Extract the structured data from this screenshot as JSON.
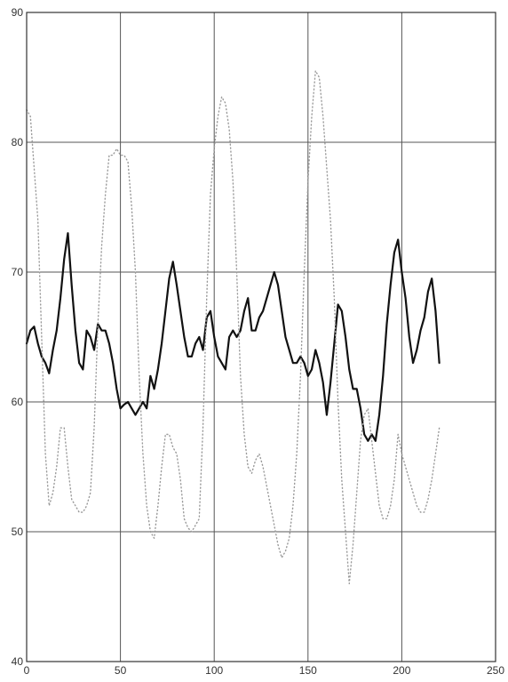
{
  "chart_data": {
    "type": "line",
    "title": "",
    "xlabel": "",
    "ylabel": "",
    "xlim": [
      0,
      250
    ],
    "ylim": [
      40,
      90
    ],
    "grid": true,
    "xticks": [
      0,
      50,
      100,
      150,
      200,
      250
    ],
    "yticks": [
      40,
      50,
      60,
      70,
      80,
      90
    ],
    "series": [
      {
        "style": "solid",
        "color": "#111111",
        "x": [
          0,
          2,
          4,
          6,
          8,
          10,
          12,
          14,
          16,
          18,
          20,
          22,
          24,
          26,
          28,
          30,
          32,
          34,
          36,
          38,
          40,
          42,
          44,
          46,
          48,
          50,
          52,
          54,
          56,
          58,
          60,
          62,
          64,
          66,
          68,
          70,
          72,
          74,
          76,
          78,
          80,
          82,
          84,
          86,
          88,
          90,
          92,
          94,
          96,
          98,
          100,
          102,
          104,
          106,
          108,
          110,
          112,
          114,
          116,
          118,
          120,
          122,
          124,
          126,
          128,
          130,
          132,
          134,
          136,
          138,
          140,
          142,
          144,
          146,
          148,
          150,
          152,
          154,
          156,
          158,
          160,
          162,
          164,
          166,
          168,
          170,
          172,
          174,
          176,
          178,
          180,
          182,
          184,
          186,
          188,
          190,
          192,
          194,
          196,
          198,
          200,
          202,
          204,
          206,
          208,
          210,
          212,
          214,
          216,
          218,
          220
        ],
        "values": [
          64.5,
          65.5,
          65.8,
          64.5,
          63.5,
          63.0,
          62.2,
          64.0,
          65.5,
          68.0,
          71.0,
          73.0,
          69.0,
          65.5,
          63.0,
          62.5,
          65.5,
          65.0,
          64.0,
          66.0,
          65.5,
          65.5,
          64.5,
          63.0,
          61.0,
          59.5,
          59.8,
          60.0,
          59.5,
          59.0,
          59.5,
          60.0,
          59.5,
          62.0,
          61.0,
          62.5,
          64.5,
          67.0,
          69.5,
          70.8,
          69.0,
          67.0,
          65.0,
          63.5,
          63.5,
          64.5,
          65.0,
          64.0,
          66.5,
          67.0,
          65.0,
          63.5,
          63.0,
          62.5,
          65.0,
          65.5,
          65.0,
          65.5,
          67.0,
          68.0,
          65.5,
          65.5,
          66.5,
          67.0,
          68.0,
          69.0,
          70.0,
          69.0,
          67.0,
          65.0,
          64.0,
          63.0,
          63.0,
          63.5,
          63.0,
          62.0,
          62.5,
          64.0,
          63.0,
          61.5,
          59.0,
          61.5,
          64.5,
          67.5,
          67.0,
          65.0,
          62.5,
          61.0,
          61.0,
          59.5,
          57.5,
          57.0,
          57.5,
          57.0,
          59.0,
          62.0,
          66.0,
          69.0,
          71.5,
          72.5,
          70.0,
          68.0,
          65.0,
          63.0,
          64.0,
          65.5,
          66.5,
          68.5,
          69.5,
          67.0,
          63.0
        ]
      },
      {
        "style": "dotted",
        "color": "#9a9a9a",
        "x": [
          0,
          2,
          4,
          6,
          8,
          10,
          12,
          14,
          16,
          18,
          20,
          22,
          24,
          26,
          28,
          30,
          32,
          34,
          36,
          38,
          40,
          42,
          44,
          46,
          48,
          50,
          52,
          54,
          56,
          58,
          60,
          62,
          64,
          66,
          68,
          70,
          72,
          74,
          76,
          78,
          80,
          82,
          84,
          86,
          88,
          90,
          92,
          94,
          96,
          98,
          100,
          102,
          104,
          106,
          108,
          110,
          112,
          114,
          116,
          118,
          120,
          122,
          124,
          126,
          128,
          130,
          132,
          134,
          136,
          138,
          140,
          142,
          144,
          146,
          148,
          150,
          152,
          154,
          156,
          158,
          160,
          162,
          164,
          166,
          168,
          170,
          172,
          174,
          176,
          178,
          180,
          182,
          184,
          186,
          188,
          190,
          192,
          194,
          196,
          198,
          200,
          202,
          204,
          206,
          208,
          210,
          212,
          214,
          216,
          218,
          220
        ],
        "values": [
          82.5,
          82.0,
          78.0,
          74.0,
          65.0,
          56.0,
          52.0,
          53.0,
          55.0,
          58.0,
          58.0,
          55.0,
          52.5,
          52.0,
          51.5,
          51.5,
          52.0,
          53.0,
          58.0,
          66.0,
          72.0,
          76.0,
          79.0,
          79.0,
          79.5,
          79.0,
          79.0,
          78.5,
          75.0,
          70.0,
          62.0,
          56.0,
          52.0,
          50.0,
          49.5,
          52.0,
          55.0,
          57.5,
          57.5,
          56.5,
          56.0,
          54.0,
          51.0,
          50.3,
          50.0,
          50.5,
          51.0,
          58.0,
          68.0,
          76.0,
          79.5,
          82.0,
          83.5,
          83.0,
          81.0,
          77.0,
          70.0,
          62.0,
          57.5,
          55.0,
          54.5,
          55.5,
          56.0,
          55.0,
          53.5,
          52.0,
          50.5,
          49.0,
          48.0,
          48.5,
          49.5,
          52.0,
          56.0,
          62.0,
          70.0,
          77.0,
          82.0,
          85.5,
          85.0,
          82.0,
          78.0,
          74.0,
          68.0,
          60.0,
          54.0,
          50.0,
          46.0,
          49.0,
          53.0,
          57.0,
          59.0,
          59.5,
          57.0,
          54.5,
          52.0,
          51.0,
          51.0,
          52.0,
          54.0,
          57.5,
          56.0,
          55.0,
          54.0,
          53.0,
          52.0,
          51.5,
          51.5,
          52.5,
          54.0,
          56.0,
          58.0
        ]
      }
    ]
  }
}
